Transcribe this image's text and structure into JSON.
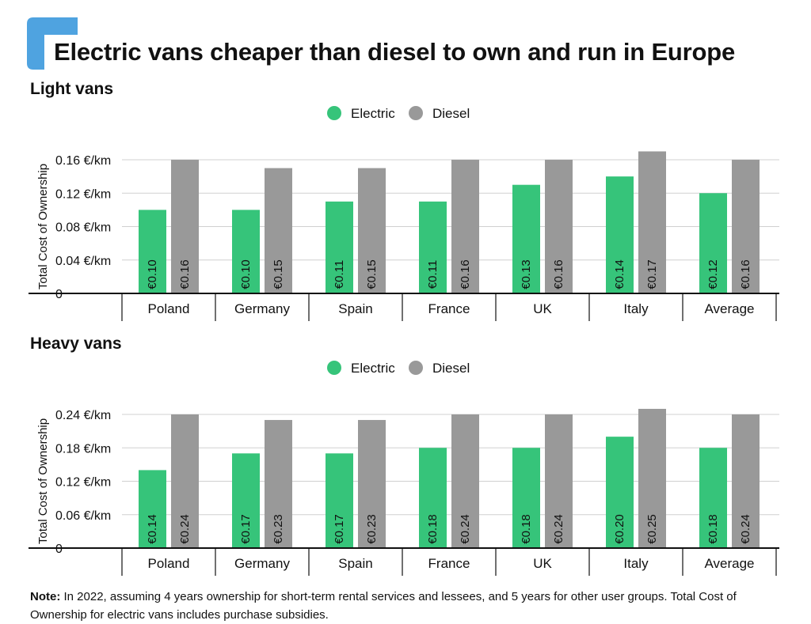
{
  "title": "Electric vans cheaper than diesel to own and run in Europe",
  "colors": {
    "electric": "#36c47a",
    "diesel": "#999999",
    "accent": "#4fa3e0",
    "grid": "#d0d0d0",
    "axis": "#111111"
  },
  "note": {
    "label": "Note:",
    "text": "In 2022, assuming 4 years ownership for short-term rental services and lessees, and 5 years for other user groups. Total Cost of Ownership for electric vans includes purchase subsidies."
  },
  "chart_data": [
    {
      "type": "bar",
      "title": "Light vans",
      "ylabel": "Total Cost of Ownership",
      "ylim": [
        0,
        0.16
      ],
      "yticks": [
        {
          "value": 0,
          "label": "0"
        },
        {
          "value": 0.04,
          "label": "0.04 €/km"
        },
        {
          "value": 0.08,
          "label": "0.08 €/km"
        },
        {
          "value": 0.12,
          "label": "0.12 €/km"
        },
        {
          "value": 0.16,
          "label": "0.16 €/km"
        }
      ],
      "grid": true,
      "legend_position": "top-center",
      "categories": [
        "Poland",
        "Germany",
        "Spain",
        "France",
        "UK",
        "Italy",
        "Average"
      ],
      "series": [
        {
          "name": "Electric",
          "values": [
            0.1,
            0.1,
            0.11,
            0.11,
            0.13,
            0.14,
            0.12
          ],
          "labels": [
            "€0.10",
            "€0.10",
            "€0.11",
            "€0.11",
            "€0.13",
            "€0.14",
            "€0.12"
          ]
        },
        {
          "name": "Diesel",
          "values": [
            0.16,
            0.15,
            0.15,
            0.16,
            0.16,
            0.17,
            0.16
          ],
          "labels": [
            "€0.16",
            "€0.15",
            "€0.15",
            "€0.16",
            "€0.16",
            "€0.17",
            "€0.16"
          ]
        }
      ]
    },
    {
      "type": "bar",
      "title": "Heavy vans",
      "ylabel": "Total Cost of Ownership",
      "ylim": [
        0,
        0.24
      ],
      "yticks": [
        {
          "value": 0,
          "label": "0"
        },
        {
          "value": 0.06,
          "label": "0.06 €/km"
        },
        {
          "value": 0.12,
          "label": "0.12 €/km"
        },
        {
          "value": 0.18,
          "label": "0.18 €/km"
        },
        {
          "value": 0.24,
          "label": "0.24 €/km"
        }
      ],
      "grid": true,
      "legend_position": "top-center",
      "categories": [
        "Poland",
        "Germany",
        "Spain",
        "France",
        "UK",
        "Italy",
        "Average"
      ],
      "series": [
        {
          "name": "Electric",
          "values": [
            0.14,
            0.17,
            0.17,
            0.18,
            0.18,
            0.2,
            0.18
          ],
          "labels": [
            "€0.14",
            "€0.17",
            "€0.17",
            "€0.18",
            "€0.18",
            "€0.20",
            "€0.18"
          ]
        },
        {
          "name": "Diesel",
          "values": [
            0.24,
            0.23,
            0.23,
            0.24,
            0.24,
            0.25,
            0.24
          ],
          "labels": [
            "€0.24",
            "€0.23",
            "€0.23",
            "€0.24",
            "€0.24",
            "€0.25",
            "€0.24"
          ]
        }
      ]
    }
  ]
}
